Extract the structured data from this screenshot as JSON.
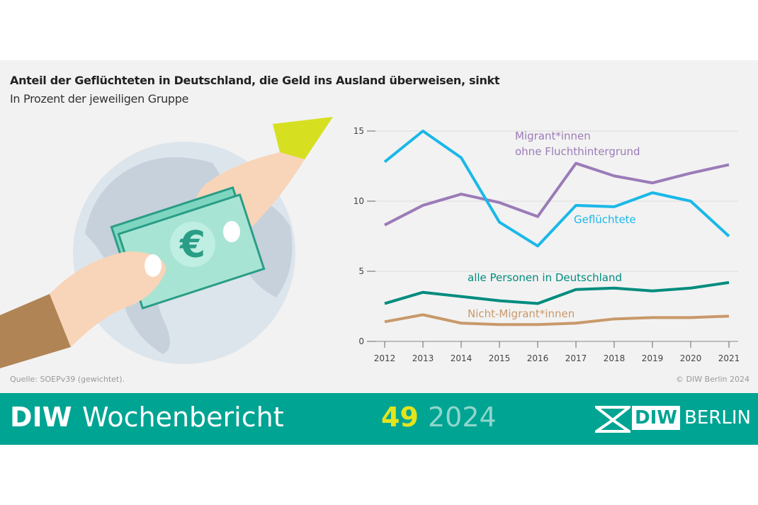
{
  "title": "Anteil der Geflüchteten in Deutschland, die Geld ins Ausland überweisen, sinkt",
  "subtitle": "In Prozent der jeweiligen Gruppe",
  "source": "Quelle: SOEPv39 (gewichtet).",
  "copyright": "© DIW Berlin 2024",
  "footer": {
    "brand_bold": "DIW",
    "brand_name": "Wochenbericht",
    "issue": "49",
    "year": "2024",
    "logo_text_diw": "DIW",
    "logo_text_berlin": "BERLIN"
  },
  "illustration": {
    "currency_symbol": "€"
  },
  "chart_data": {
    "type": "line",
    "title": "Anteil der Geflüchteten in Deutschland, die Geld ins Ausland überweisen, sinkt",
    "subtitle": "In Prozent der jeweiligen Gruppe",
    "x": [
      2012,
      2013,
      2014,
      2015,
      2016,
      2017,
      2018,
      2019,
      2020,
      2021
    ],
    "ylim": [
      0,
      15
    ],
    "yticks": [
      0,
      5,
      10,
      15
    ],
    "grid": true,
    "series": [
      {
        "name": "Migrant*innen ohne Fluchthintergrund",
        "label_lines": [
          "Migrant*innen",
          "ohne Fluchthintergrund"
        ],
        "color": "#9b7bb8",
        "values": [
          8.3,
          9.7,
          10.5,
          9.9,
          8.9,
          12.7,
          11.8,
          11.3,
          12.0,
          12.6
        ]
      },
      {
        "name": "Geflüchtete",
        "label_lines": [
          "Geflüchtete"
        ],
        "color": "#1ab8e8",
        "values": [
          12.8,
          15.0,
          13.1,
          8.5,
          6.8,
          9.7,
          9.6,
          10.6,
          10.0,
          7.5
        ]
      },
      {
        "name": "alle Personen in Deutschland",
        "label_lines": [
          "alle Personen in Deutschland"
        ],
        "color": "#008c7e",
        "values": [
          2.7,
          3.5,
          3.2,
          2.9,
          2.7,
          3.7,
          3.8,
          3.6,
          3.8,
          4.2
        ]
      },
      {
        "name": "Nicht-Migrant*innen",
        "label_lines": [
          "Nicht-Migrant*innen"
        ],
        "color": "#c8996a",
        "values": [
          1.4,
          1.9,
          1.3,
          1.2,
          1.2,
          1.3,
          1.6,
          1.7,
          1.7,
          1.8
        ]
      }
    ]
  }
}
